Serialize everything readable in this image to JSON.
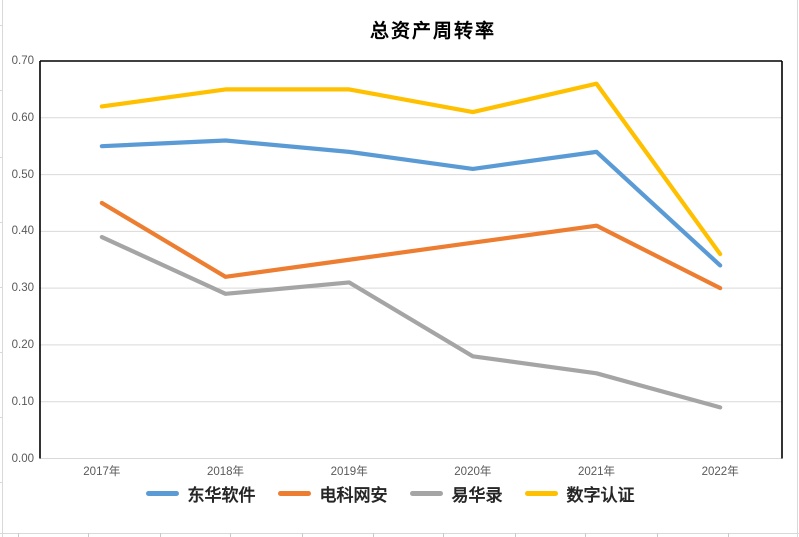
{
  "chart_data": {
    "type": "line",
    "title": "总资产周转率",
    "categories": [
      "2017年",
      "2018年",
      "2019年",
      "2020年",
      "2021年",
      "2022年"
    ],
    "series": [
      {
        "name": "东华软件",
        "color": "#5B9BD5",
        "values": [
          0.55,
          0.56,
          0.54,
          0.51,
          0.54,
          0.34
        ]
      },
      {
        "name": "电科网安",
        "color": "#ED7D31",
        "values": [
          0.45,
          0.32,
          0.35,
          0.38,
          0.41,
          0.3
        ]
      },
      {
        "name": "易华录",
        "color": "#A5A5A5",
        "values": [
          0.39,
          0.29,
          0.31,
          0.18,
          0.15,
          0.09
        ]
      },
      {
        "name": "数字认证",
        "color": "#FFC000",
        "values": [
          0.62,
          0.65,
          0.65,
          0.61,
          0.66,
          0.36
        ]
      }
    ],
    "xlabel": "",
    "ylabel": "",
    "y_axis": {
      "min": 0.0,
      "max": 0.7,
      "step": 0.1,
      "tick_labels": [
        "0.00",
        "0.10",
        "0.20",
        "0.30",
        "0.40",
        "0.50",
        "0.60",
        "0.70"
      ]
    },
    "legend_position": "bottom",
    "grid": true,
    "colors": {
      "gridline": "#D9D9D9",
      "axis_border": "#000000",
      "tick_label": "#595959",
      "background": "#FFFFFF"
    }
  }
}
